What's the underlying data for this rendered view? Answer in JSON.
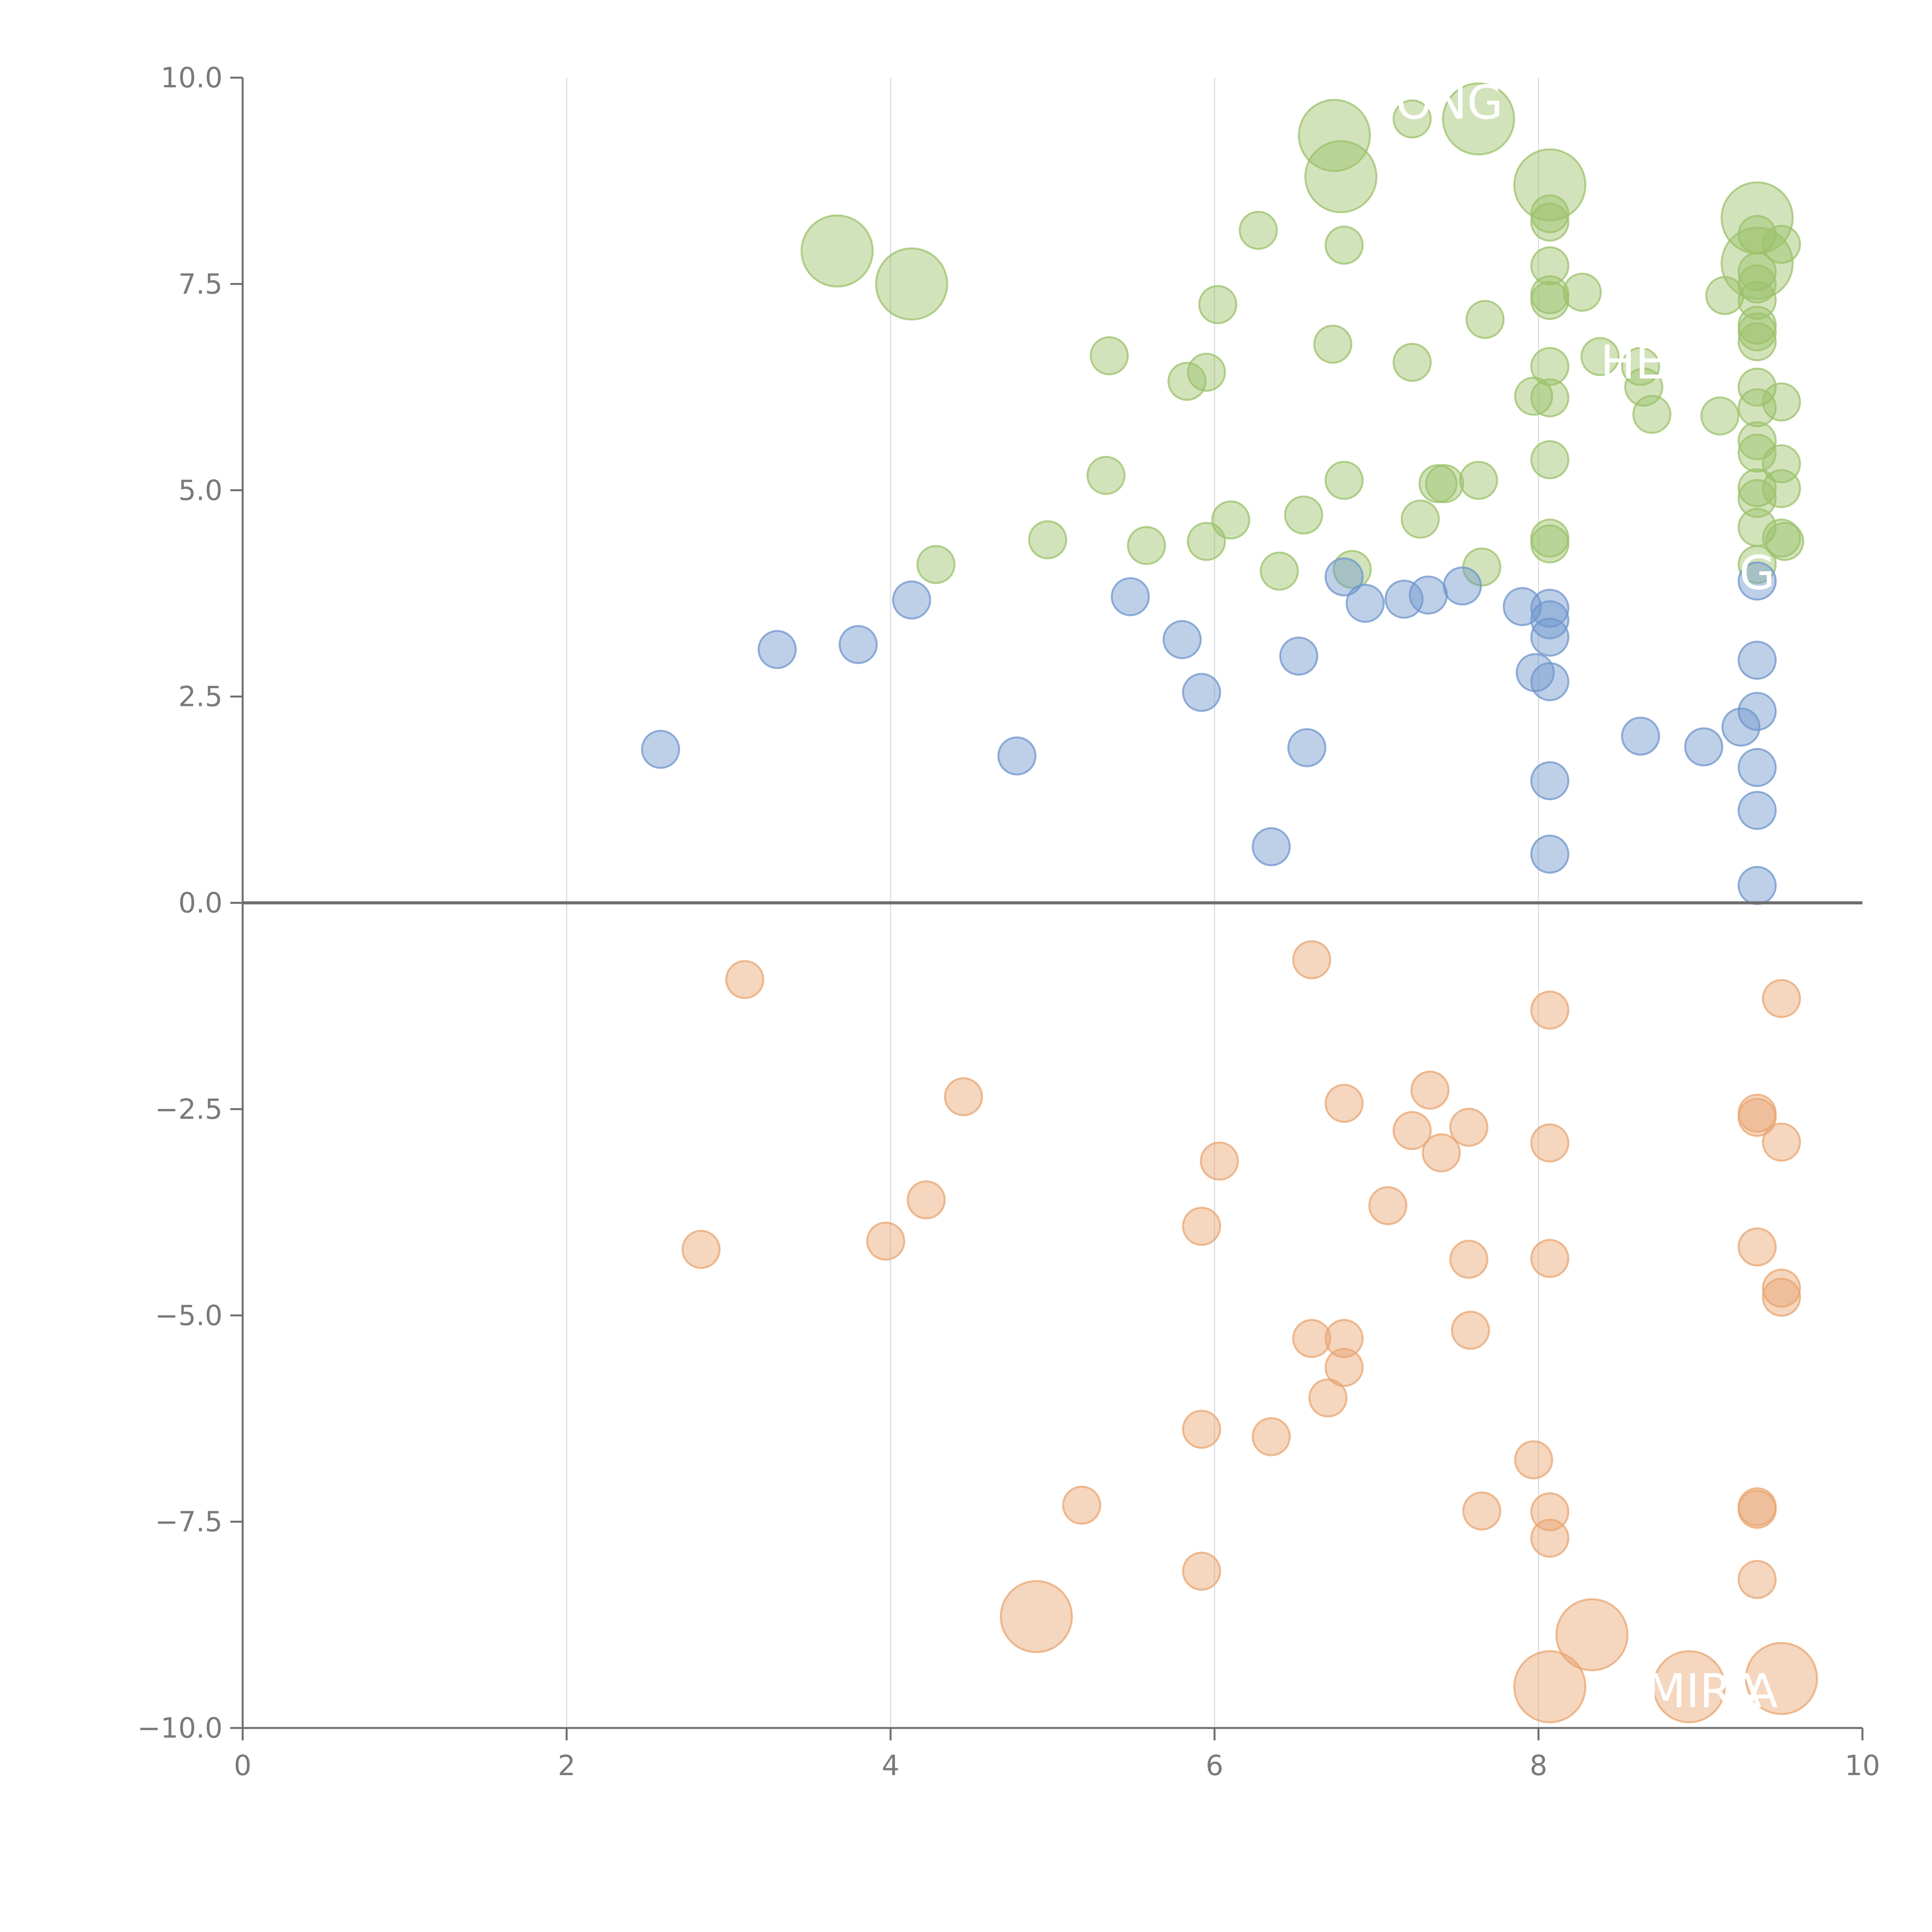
{
  "chart_data": {
    "type": "scatter",
    "title": "",
    "xlabel": "",
    "ylabel": "",
    "xlim": [
      0,
      10
    ],
    "ylim": [
      -10,
      10
    ],
    "x_ticks": [
      "0",
      "2",
      "4",
      "6",
      "8",
      "10"
    ],
    "y_ticks": [
      "−10.0",
      "−7.5",
      "−5.0",
      "−2.5",
      "0.0",
      "2.5",
      "5.0",
      "7.5",
      "10.0"
    ],
    "grid": "vertical-gridlines",
    "baseline_y": 0,
    "colors": {
      "green": "#9cc26a",
      "blue": "#6f96cc",
      "orange": "#e8a570"
    },
    "series": [
      {
        "color": "green",
        "points": [
          {
            "x": 3.67,
            "y": 7.9,
            "size": "large"
          },
          {
            "x": 4.13,
            "y": 7.5,
            "size": "large"
          },
          {
            "x": 6.74,
            "y": 9.3,
            "size": "large"
          },
          {
            "x": 6.78,
            "y": 8.8,
            "size": "large"
          },
          {
            "x": 7.63,
            "y": 9.5,
            "size": "large"
          },
          {
            "x": 8.07,
            "y": 8.7,
            "size": "large"
          },
          {
            "x": 9.35,
            "y": 8.3,
            "size": "large"
          },
          {
            "x": 9.35,
            "y": 7.75,
            "size": "large"
          },
          {
            "x": 4.28,
            "y": 4.1
          },
          {
            "x": 4.97,
            "y": 4.4
          },
          {
            "x": 5.33,
            "y": 5.18
          },
          {
            "x": 5.35,
            "y": 6.63
          },
          {
            "x": 5.58,
            "y": 4.33
          },
          {
            "x": 5.83,
            "y": 6.32
          },
          {
            "x": 5.95,
            "y": 6.43
          },
          {
            "x": 5.95,
            "y": 4.38
          },
          {
            "x": 6.02,
            "y": 7.25
          },
          {
            "x": 6.1,
            "y": 4.64
          },
          {
            "x": 6.27,
            "y": 8.15
          },
          {
            "x": 6.4,
            "y": 4.02
          },
          {
            "x": 6.55,
            "y": 4.7
          },
          {
            "x": 6.73,
            "y": 6.77
          },
          {
            "x": 6.8,
            "y": 7.97
          },
          {
            "x": 6.8,
            "y": 5.12
          },
          {
            "x": 6.85,
            "y": 4.04
          },
          {
            "x": 7.22,
            "y": 9.5
          },
          {
            "x": 7.22,
            "y": 6.55
          },
          {
            "x": 7.27,
            "y": 4.65
          },
          {
            "x": 7.38,
            "y": 5.08
          },
          {
            "x": 7.42,
            "y": 5.08
          },
          {
            "x": 7.63,
            "y": 5.12
          },
          {
            "x": 7.65,
            "y": 4.07
          },
          {
            "x": 7.67,
            "y": 7.07
          },
          {
            "x": 7.97,
            "y": 6.14
          },
          {
            "x": 8.07,
            "y": 8.35
          },
          {
            "x": 8.07,
            "y": 8.25
          },
          {
            "x": 8.07,
            "y": 7.72
          },
          {
            "x": 8.07,
            "y": 7.37
          },
          {
            "x": 8.07,
            "y": 7.3
          },
          {
            "x": 8.07,
            "y": 6.5
          },
          {
            "x": 8.07,
            "y": 6.12
          },
          {
            "x": 8.07,
            "y": 5.37
          },
          {
            "x": 8.07,
            "y": 4.42
          },
          {
            "x": 8.07,
            "y": 4.35
          },
          {
            "x": 8.27,
            "y": 7.4
          },
          {
            "x": 8.38,
            "y": 6.62
          },
          {
            "x": 8.63,
            "y": 6.5
          },
          {
            "x": 8.65,
            "y": 6.25
          },
          {
            "x": 8.7,
            "y": 5.92
          },
          {
            "x": 9.12,
            "y": 5.9
          },
          {
            "x": 9.15,
            "y": 7.36
          },
          {
            "x": 9.35,
            "y": 8.1
          },
          {
            "x": 9.35,
            "y": 7.65
          },
          {
            "x": 9.35,
            "y": 7.5
          },
          {
            "x": 9.35,
            "y": 7.3
          },
          {
            "x": 9.35,
            "y": 7.0
          },
          {
            "x": 9.35,
            "y": 6.92
          },
          {
            "x": 9.35,
            "y": 6.8
          },
          {
            "x": 9.35,
            "y": 6.25
          },
          {
            "x": 9.35,
            "y": 6.0
          },
          {
            "x": 9.35,
            "y": 5.6
          },
          {
            "x": 9.35,
            "y": 5.45
          },
          {
            "x": 9.35,
            "y": 5.03
          },
          {
            "x": 9.35,
            "y": 4.9
          },
          {
            "x": 9.35,
            "y": 4.55
          },
          {
            "x": 9.35,
            "y": 4.1
          },
          {
            "x": 9.5,
            "y": 7.98
          },
          {
            "x": 9.5,
            "y": 6.07
          },
          {
            "x": 9.5,
            "y": 5.32
          },
          {
            "x": 9.5,
            "y": 5.02
          },
          {
            "x": 9.5,
            "y": 4.42
          },
          {
            "x": 9.52,
            "y": 4.38
          }
        ]
      },
      {
        "color": "blue",
        "points": [
          {
            "x": 2.58,
            "y": 1.86
          },
          {
            "x": 3.3,
            "y": 3.07
          },
          {
            "x": 3.8,
            "y": 3.13
          },
          {
            "x": 4.13,
            "y": 3.67
          },
          {
            "x": 4.78,
            "y": 1.78
          },
          {
            "x": 5.48,
            "y": 3.71
          },
          {
            "x": 5.8,
            "y": 3.19
          },
          {
            "x": 5.92,
            "y": 2.55
          },
          {
            "x": 6.35,
            "y": 0.68
          },
          {
            "x": 6.52,
            "y": 2.99
          },
          {
            "x": 6.57,
            "y": 1.88
          },
          {
            "x": 6.8,
            "y": 3.95
          },
          {
            "x": 6.93,
            "y": 3.63
          },
          {
            "x": 7.17,
            "y": 3.68
          },
          {
            "x": 7.32,
            "y": 3.73
          },
          {
            "x": 7.53,
            "y": 3.84
          },
          {
            "x": 7.9,
            "y": 3.59
          },
          {
            "x": 7.98,
            "y": 2.79
          },
          {
            "x": 8.07,
            "y": 3.57
          },
          {
            "x": 8.07,
            "y": 3.43
          },
          {
            "x": 8.07,
            "y": 3.22
          },
          {
            "x": 8.07,
            "y": 2.68
          },
          {
            "x": 8.07,
            "y": 1.48
          },
          {
            "x": 8.07,
            "y": 0.59
          },
          {
            "x": 8.63,
            "y": 2.02
          },
          {
            "x": 9.02,
            "y": 1.89
          },
          {
            "x": 9.25,
            "y": 2.13
          },
          {
            "x": 9.35,
            "y": 3.9
          },
          {
            "x": 9.35,
            "y": 2.94
          },
          {
            "x": 9.35,
            "y": 2.32
          },
          {
            "x": 9.35,
            "y": 1.64
          },
          {
            "x": 9.35,
            "y": 1.12
          },
          {
            "x": 9.35,
            "y": 0.21
          }
        ]
      },
      {
        "color": "orange",
        "points": [
          {
            "x": 4.9,
            "y": -8.65,
            "size": "large"
          },
          {
            "x": 8.07,
            "y": -9.5,
            "size": "large"
          },
          {
            "x": 8.33,
            "y": -8.87,
            "size": "large"
          },
          {
            "x": 8.93,
            "y": -9.5,
            "size": "large"
          },
          {
            "x": 9.5,
            "y": -9.4,
            "size": "large"
          },
          {
            "x": 2.83,
            "y": -4.2
          },
          {
            "x": 3.1,
            "y": -0.93
          },
          {
            "x": 3.97,
            "y": -4.1
          },
          {
            "x": 4.22,
            "y": -3.6
          },
          {
            "x": 4.45,
            "y": -2.35
          },
          {
            "x": 5.18,
            "y": -7.3
          },
          {
            "x": 5.92,
            "y": -3.92
          },
          {
            "x": 5.92,
            "y": -6.38
          },
          {
            "x": 5.92,
            "y": -8.1
          },
          {
            "x": 6.03,
            "y": -3.13
          },
          {
            "x": 6.35,
            "y": -6.47
          },
          {
            "x": 6.6,
            "y": -0.69
          },
          {
            "x": 6.6,
            "y": -5.28
          },
          {
            "x": 6.7,
            "y": -6.0
          },
          {
            "x": 6.8,
            "y": -2.43
          },
          {
            "x": 6.8,
            "y": -5.28
          },
          {
            "x": 6.8,
            "y": -5.63
          },
          {
            "x": 7.07,
            "y": -3.67
          },
          {
            "x": 7.22,
            "y": -2.76
          },
          {
            "x": 7.33,
            "y": -2.27
          },
          {
            "x": 7.4,
            "y": -3.03
          },
          {
            "x": 7.57,
            "y": -2.72
          },
          {
            "x": 7.57,
            "y": -4.32
          },
          {
            "x": 7.58,
            "y": -5.18
          },
          {
            "x": 7.65,
            "y": -7.37
          },
          {
            "x": 7.97,
            "y": -6.75
          },
          {
            "x": 8.07,
            "y": -1.3
          },
          {
            "x": 8.07,
            "y": -2.91
          },
          {
            "x": 8.07,
            "y": -4.31
          },
          {
            "x": 8.07,
            "y": -7.38
          },
          {
            "x": 8.07,
            "y": -7.7
          },
          {
            "x": 9.35,
            "y": -2.55
          },
          {
            "x": 9.35,
            "y": -2.6
          },
          {
            "x": 9.35,
            "y": -4.17
          },
          {
            "x": 9.35,
            "y": -7.32
          },
          {
            "x": 9.35,
            "y": -7.35
          },
          {
            "x": 9.35,
            "y": -8.2
          },
          {
            "x": 9.5,
            "y": -1.16
          },
          {
            "x": 9.5,
            "y": -2.9
          },
          {
            "x": 9.5,
            "y": -4.67
          },
          {
            "x": 9.5,
            "y": -4.78
          }
        ]
      }
    ],
    "labels": [
      {
        "text": "ONG",
        "x": 7.45,
        "y": 9.7
      },
      {
        "text": "HE",
        "x": 8.58,
        "y": 6.55
      },
      {
        "text": "G",
        "x": 9.35,
        "y": 4.0
      },
      {
        "text": "MIRA",
        "x": 9.02,
        "y": -9.55
      },
      {
        "text": "A",
        "x": 9.38,
        "y": -9.55
      }
    ]
  }
}
